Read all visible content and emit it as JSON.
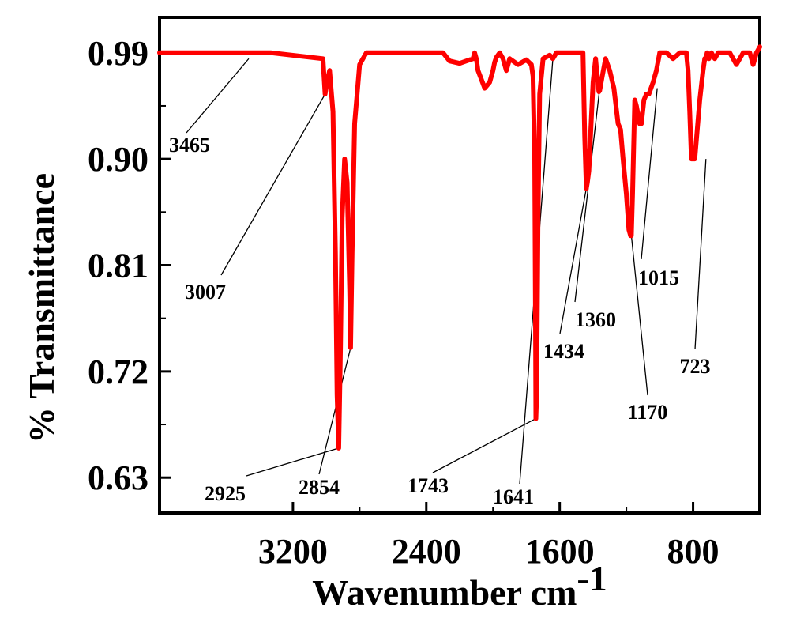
{
  "chart_data": {
    "type": "line",
    "xlabel": "Wavenumber cm",
    "xlabel_superscript": "-1",
    "ylabel": "% Transmittance",
    "xlim": [
      4000,
      400
    ],
    "ylim": [
      0.6,
      1.02
    ],
    "x_ticks": [
      {
        "value": 3200,
        "label": "3200"
      },
      {
        "value": 2400,
        "label": "2400"
      },
      {
        "value": 1600,
        "label": "1600"
      },
      {
        "value": 800,
        "label": "800"
      }
    ],
    "y_ticks": [
      {
        "value": 0.99,
        "label": "0.99"
      },
      {
        "value": 0.9,
        "label": "0.90"
      },
      {
        "value": 0.81,
        "label": "0.81"
      },
      {
        "value": 0.72,
        "label": "0.72"
      },
      {
        "value": 0.63,
        "label": "0.63"
      }
    ],
    "grid": false,
    "series": [
      {
        "color": "#ff0000",
        "x": [
          4000,
          3900,
          3800,
          3700,
          3600,
          3500,
          3420,
          3330,
          3020,
          3007,
          2995,
          2980,
          2960,
          2945,
          2935,
          2925,
          2915,
          2905,
          2890,
          2875,
          2860,
          2854,
          2845,
          2830,
          2800,
          2760,
          2700,
          2600,
          2520,
          2480,
          2440,
          2400,
          2300,
          2260,
          2200,
          2160,
          2120,
          2110,
          2100,
          2090,
          2050,
          2020,
          2000,
          1990,
          1980,
          1960,
          1940,
          1920,
          1900,
          1850,
          1800,
          1770,
          1760,
          1750,
          1745,
          1743,
          1738,
          1730,
          1720,
          1700,
          1660,
          1641,
          1620,
          1560,
          1480,
          1460,
          1450,
          1440,
          1434,
          1425,
          1400,
          1385,
          1375,
          1365,
          1360,
          1345,
          1325,
          1300,
          1275,
          1250,
          1235,
          1220,
          1210,
          1200,
          1185,
          1175,
          1170,
          1163,
          1150,
          1140,
          1120,
          1110,
          1095,
          1080,
          1065,
          1040,
          1020,
          1000,
          960,
          920,
          880,
          860,
          840,
          830,
          820,
          810,
          790,
          760,
          740,
          730,
          723,
          716,
          705,
          690,
          670,
          650,
          620,
          580,
          540,
          500,
          460,
          440,
          420,
          400
        ],
        "y": [
          0.99,
          0.99,
          0.99,
          0.99,
          0.99,
          0.99,
          0.99,
          0.99,
          0.985,
          0.955,
          0.965,
          0.975,
          0.94,
          0.82,
          0.7,
          0.655,
          0.74,
          0.85,
          0.9,
          0.88,
          0.79,
          0.74,
          0.82,
          0.93,
          0.98,
          0.99,
          0.99,
          0.99,
          0.99,
          0.99,
          0.99,
          0.99,
          0.99,
          0.983,
          0.981,
          0.983,
          0.985,
          0.99,
          0.985,
          0.975,
          0.96,
          0.965,
          0.975,
          0.982,
          0.986,
          0.99,
          0.985,
          0.975,
          0.985,
          0.98,
          0.984,
          0.98,
          0.97,
          0.9,
          0.75,
          0.68,
          0.7,
          0.85,
          0.955,
          0.985,
          0.988,
          0.985,
          0.99,
          0.99,
          0.99,
          0.99,
          0.92,
          0.875,
          0.88,
          0.89,
          0.965,
          0.985,
          0.97,
          0.957,
          0.958,
          0.97,
          0.985,
          0.975,
          0.96,
          0.93,
          0.925,
          0.9,
          0.885,
          0.87,
          0.84,
          0.835,
          0.835,
          0.87,
          0.95,
          0.945,
          0.93,
          0.93,
          0.95,
          0.955,
          0.955,
          0.965,
          0.975,
          0.99,
          0.99,
          0.985,
          0.99,
          0.99,
          0.99,
          0.975,
          0.94,
          0.9,
          0.9,
          0.95,
          0.975,
          0.985,
          0.985,
          0.99,
          0.985,
          0.99,
          0.985,
          0.99,
          0.99,
          0.99,
          0.98,
          0.99,
          0.99,
          0.98,
          0.99,
          0.995
        ]
      }
    ],
    "annotations": [
      {
        "text": "3465",
        "x": 3465,
        "y": 0.99
      },
      {
        "text": "3007",
        "x": 3007,
        "y": 0.955
      },
      {
        "text": "2925",
        "x": 2925,
        "y": 0.655
      },
      {
        "text": "2854",
        "x": 2854,
        "y": 0.74
      },
      {
        "text": "1743",
        "x": 1743,
        "y": 0.68
      },
      {
        "text": "1641",
        "x": 1641,
        "y": 0.985
      },
      {
        "text": "1434",
        "x": 1434,
        "y": 0.88
      },
      {
        "text": "1360",
        "x": 1360,
        "y": 0.958
      },
      {
        "text": "1170",
        "x": 1170,
        "y": 0.835
      },
      {
        "text": "1015",
        "x": 1015,
        "y": 0.99
      },
      {
        "text": "723",
        "x": 723,
        "y": 0.9
      }
    ]
  }
}
